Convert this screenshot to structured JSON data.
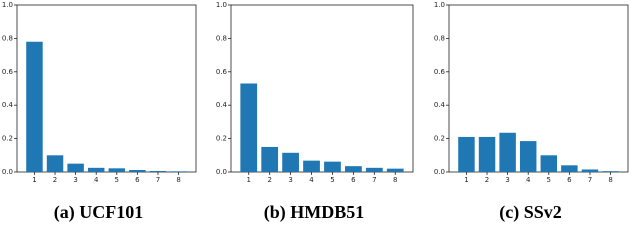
{
  "chart_data": [
    {
      "type": "bar",
      "title": "(a) UCF101",
      "categories": [
        "1",
        "2",
        "3",
        "4",
        "5",
        "6",
        "7",
        "8"
      ],
      "values": [
        0.78,
        0.1,
        0.05,
        0.025,
        0.022,
        0.012,
        0.006,
        0.004
      ],
      "color": "#1f77b4",
      "ylim": [
        0,
        1
      ],
      "yticks": [
        {
          "value": 0,
          "label": "0.0"
        },
        0.2,
        0.4,
        0.6,
        0.8,
        {
          "value": 1,
          "label": "1.0"
        }
      ],
      "grid": false
    },
    {
      "type": "bar",
      "title": "(b) HMDB51",
      "categories": [
        "1",
        "2",
        "3",
        "4",
        "5",
        "6",
        "7",
        "8"
      ],
      "values": [
        0.53,
        0.15,
        0.115,
        0.068,
        0.062,
        0.035,
        0.025,
        0.02
      ],
      "color": "#1f77b4",
      "ylim": [
        0,
        1
      ],
      "yticks": [
        {
          "value": 0,
          "label": "0.0"
        },
        0.2,
        0.4,
        0.6,
        0.8,
        {
          "value": 1,
          "label": "1.0"
        }
      ],
      "grid": false
    },
    {
      "type": "bar",
      "title": "(c) SSv2",
      "categories": [
        "1",
        "2",
        "3",
        "4",
        "5",
        "6",
        "7",
        "8"
      ],
      "values": [
        0.21,
        0.21,
        0.235,
        0.185,
        0.1,
        0.04,
        0.015,
        0.005
      ],
      "color": "#1f77b4",
      "ylim": [
        0,
        1
      ],
      "yticks": [
        {
          "value": 0,
          "label": "0.0"
        },
        0.2,
        0.4,
        0.6,
        0.8,
        {
          "value": 1,
          "label": "1.0"
        }
      ],
      "grid": false
    }
  ]
}
